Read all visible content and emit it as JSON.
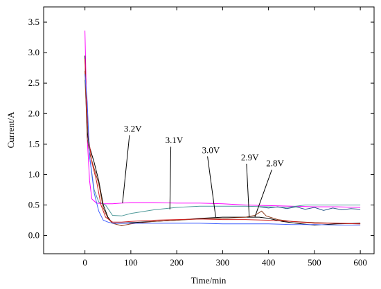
{
  "chart_data": {
    "type": "line",
    "title": "",
    "xlabel": "Time/min",
    "ylabel": "Current/A",
    "xlim": [
      -90,
      630
    ],
    "ylim": [
      -0.3,
      3.75
    ],
    "xticks": [
      0,
      100,
      200,
      300,
      400,
      500,
      600
    ],
    "yticks": [
      0.0,
      0.5,
      1.0,
      1.5,
      2.0,
      2.5,
      3.0,
      3.5
    ],
    "ytick_labels": [
      "0.0",
      "0.5",
      "1.0",
      "1.5",
      "2.0",
      "2.5",
      "3.0",
      "3.5"
    ],
    "grid": false,
    "legend": "none",
    "series": [
      {
        "color": "#ff00ff",
        "x": [
          0,
          2,
          5,
          10,
          15,
          25,
          40,
          60,
          80,
          100,
          150,
          200,
          250,
          300,
          350,
          400,
          450,
          500,
          550,
          600
        ],
        "y": [
          3.36,
          2.7,
          1.6,
          0.9,
          0.6,
          0.53,
          0.52,
          0.52,
          0.53,
          0.54,
          0.54,
          0.53,
          0.53,
          0.52,
          0.5,
          0.49,
          0.48,
          0.47,
          0.47,
          0.46
        ]
      },
      {
        "color": "#4f9a9a",
        "x": [
          0,
          5,
          10,
          20,
          30,
          45,
          60,
          80,
          100,
          150,
          200,
          250,
          300,
          350,
          400,
          440,
          480,
          520,
          560,
          600
        ],
        "y": [
          2.55,
          1.8,
          1.3,
          0.75,
          0.55,
          0.5,
          0.33,
          0.32,
          0.36,
          0.42,
          0.46,
          0.48,
          0.48,
          0.48,
          0.47,
          0.46,
          0.5,
          0.5,
          0.5,
          0.5
        ]
      },
      {
        "color": "#2a5a8a",
        "x": [
          380,
          400,
          420,
          440,
          460,
          480,
          500,
          520,
          540,
          560,
          580,
          600
        ],
        "y": [
          0.47,
          0.45,
          0.47,
          0.44,
          0.47,
          0.43,
          0.46,
          0.41,
          0.45,
          0.42,
          0.44,
          0.43
        ]
      },
      {
        "color": "#000000",
        "x": [
          0,
          5,
          10,
          20,
          30,
          40,
          50,
          60,
          80,
          100,
          150,
          200,
          250,
          300,
          350,
          380,
          400,
          430,
          460,
          500,
          550,
          600
        ],
        "y": [
          2.95,
          1.7,
          1.45,
          1.2,
          0.9,
          0.5,
          0.3,
          0.2,
          0.2,
          0.21,
          0.23,
          0.25,
          0.28,
          0.3,
          0.3,
          0.3,
          0.28,
          0.23,
          0.2,
          0.17,
          0.19,
          0.2
        ]
      },
      {
        "color": "#8b3a1a",
        "x": [
          0,
          5,
          10,
          20,
          30,
          40,
          50,
          60,
          80,
          100,
          150,
          200,
          250,
          300,
          350,
          370,
          385,
          395,
          420,
          450,
          500,
          550,
          600
        ],
        "y": [
          2.7,
          1.6,
          1.35,
          1.1,
          0.85,
          0.45,
          0.28,
          0.2,
          0.16,
          0.19,
          0.23,
          0.25,
          0.27,
          0.28,
          0.3,
          0.33,
          0.4,
          0.32,
          0.26,
          0.23,
          0.21,
          0.2,
          0.19
        ]
      },
      {
        "color": "#d02020",
        "x": [
          0,
          3,
          8,
          15,
          25,
          35,
          45,
          60,
          80,
          100,
          150,
          200,
          250,
          300,
          350,
          400,
          450,
          500,
          550,
          600
        ],
        "y": [
          2.9,
          2.2,
          1.6,
          1.2,
          0.9,
          0.5,
          0.3,
          0.22,
          0.22,
          0.23,
          0.25,
          0.26,
          0.27,
          0.26,
          0.26,
          0.25,
          0.23,
          0.2,
          0.2,
          0.19
        ]
      },
      {
        "color": "#4060ff",
        "x": [
          0,
          5,
          10,
          20,
          30,
          40,
          50,
          60,
          80,
          100,
          150,
          200,
          250,
          300,
          350,
          400,
          450,
          500,
          550,
          600
        ],
        "y": [
          2.65,
          2.2,
          1.3,
          0.7,
          0.4,
          0.25,
          0.22,
          0.2,
          0.2,
          0.2,
          0.2,
          0.2,
          0.2,
          0.19,
          0.19,
          0.19,
          0.18,
          0.18,
          0.17,
          0.17
        ]
      }
    ],
    "annotations": [
      {
        "text": "3.2V",
        "x": 85,
        "y": 1.68,
        "target_x": 82,
        "target_y": 0.53
      },
      {
        "text": "3.1V",
        "x": 175,
        "y": 1.49,
        "target_x": 185,
        "target_y": 0.43
      },
      {
        "text": "3.0V",
        "x": 255,
        "y": 1.33,
        "target_x": 285,
        "target_y": 0.3
      },
      {
        "text": "2.9V",
        "x": 340,
        "y": 1.21,
        "target_x": 358,
        "target_y": 0.3
      },
      {
        "text": "2.8V",
        "x": 395,
        "y": 1.11,
        "target_x": 370,
        "target_y": 0.3
      }
    ]
  }
}
